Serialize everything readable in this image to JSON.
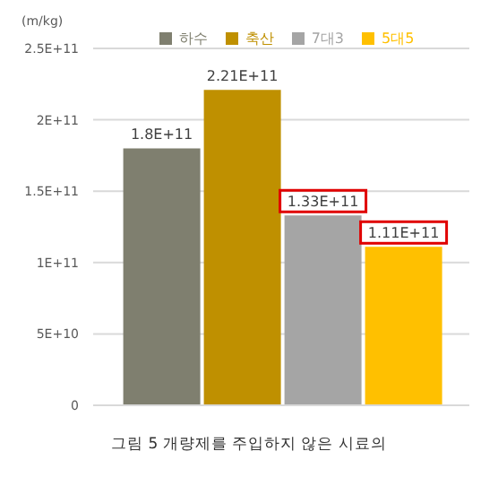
{
  "chart_data": {
    "type": "bar",
    "ylabel": "(m/kg)",
    "categories": [
      null
    ],
    "series": [
      {
        "name": "하수",
        "color": "#7f7f6f",
        "values": [
          180000000000.0
        ],
        "value_labels": [
          "1.8E+11"
        ]
      },
      {
        "name": "축산",
        "color": "#bf9000",
        "values": [
          221000000000.0
        ],
        "value_labels": [
          "2.21E+11"
        ]
      },
      {
        "name": "7대3",
        "color": "#a5a5a5",
        "values": [
          133000000000.0
        ],
        "value_labels": [
          "1.33E+11"
        ]
      },
      {
        "name": "5대5",
        "color": "#ffc000",
        "values": [
          111000000000.0
        ],
        "value_labels": [
          "1.11E+11"
        ]
      }
    ],
    "ylim": [
      0,
      250000000000.0
    ],
    "yticks": [
      0,
      {
        "value": 50000000000.0,
        "label": "5E+10"
      },
      {
        "value": 100000000000.0,
        "label": "1E+11"
      },
      {
        "value": 150000000000.0,
        "label": "1.5E+11"
      },
      {
        "value": 200000000000.0,
        "label": "2E+11"
      },
      {
        "value": 250000000000.0,
        "label": "2.5E+11"
      }
    ],
    "grid": "y",
    "legend": "top",
    "annotations": [
      "그림 5 개량제를 주입하지 않은 시료의"
    ]
  }
}
